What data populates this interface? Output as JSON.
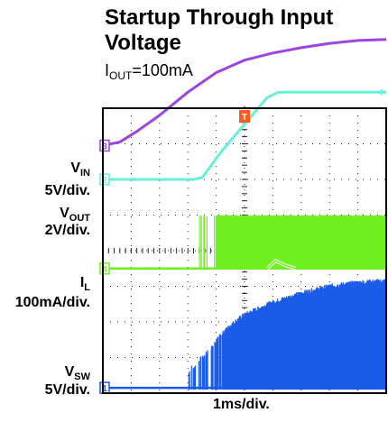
{
  "chart_data": {
    "type": "line",
    "title": "Startup Through Input Voltage",
    "subtitle_prefix": "I",
    "subtitle_sub": "OUT",
    "subtitle_value": "=100mA",
    "xlabel": "1ms/div.",
    "x_divisions": 10,
    "y_divisions": 8,
    "grid": true,
    "channels": [
      {
        "id": "3",
        "name_main": "V",
        "name_sub": "IN",
        "scale": "5V/div.",
        "color": "#9b45e0",
        "marker_div": 6.95
      },
      {
        "id": "2",
        "name_main": "V",
        "name_sub": "OUT",
        "scale": "2V/div.",
        "color": "#66f0d8",
        "marker_div": 6.0
      },
      {
        "id": "4",
        "name_main": "I",
        "name_sub": "L",
        "scale": "100mA/div.",
        "color": "#6ef01e",
        "marker_div": 3.5
      },
      {
        "id": "1",
        "name_main": "V",
        "name_sub": "SW",
        "scale": "5V/div.",
        "color": "#1a5ce8",
        "marker_div": 0.15
      }
    ],
    "trigger_marker": "T",
    "trigger_color": "#ff5a1f",
    "trigger_time_div": 5.0,
    "vin_trace": [
      [
        0,
        6.95
      ],
      [
        0.6,
        7.05
      ],
      [
        1.2,
        7.35
      ],
      [
        2.0,
        7.8
      ],
      [
        3.0,
        8.45
      ],
      [
        4.0,
        9.0
      ],
      [
        5.0,
        9.35
      ],
      [
        6.0,
        9.55
      ],
      [
        7.0,
        9.7
      ],
      [
        8.0,
        9.82
      ],
      [
        9.0,
        9.9
      ],
      [
        10.0,
        9.93
      ]
    ],
    "vout_trace": [
      [
        0,
        6.0
      ],
      [
        3.2,
        6.0
      ],
      [
        3.5,
        6.05
      ],
      [
        4.2,
        6.8
      ],
      [
        5.0,
        7.55
      ],
      [
        5.8,
        8.3
      ],
      [
        6.2,
        8.45
      ],
      [
        10.0,
        8.45
      ]
    ],
    "il_baseline_div": 3.5,
    "il_burst_top_div": 5.0,
    "il_start_div": 3.4,
    "il_dense_div": 4.0,
    "il_hump": [
      [
        5.8,
        3.5
      ],
      [
        6.1,
        3.72
      ],
      [
        6.4,
        3.6
      ],
      [
        6.8,
        3.5
      ]
    ],
    "vsw_baseline_div": 0.15,
    "vsw_start_div": 3.0,
    "vsw_envelope": [
      [
        3.0,
        0.6
      ],
      [
        3.5,
        1.0
      ],
      [
        4.0,
        1.5
      ],
      [
        4.5,
        1.9
      ],
      [
        5.0,
        2.2
      ],
      [
        6.0,
        2.55
      ],
      [
        7.0,
        2.8
      ],
      [
        8.0,
        3.0
      ],
      [
        9.0,
        3.1
      ],
      [
        10.0,
        3.15
      ]
    ]
  }
}
